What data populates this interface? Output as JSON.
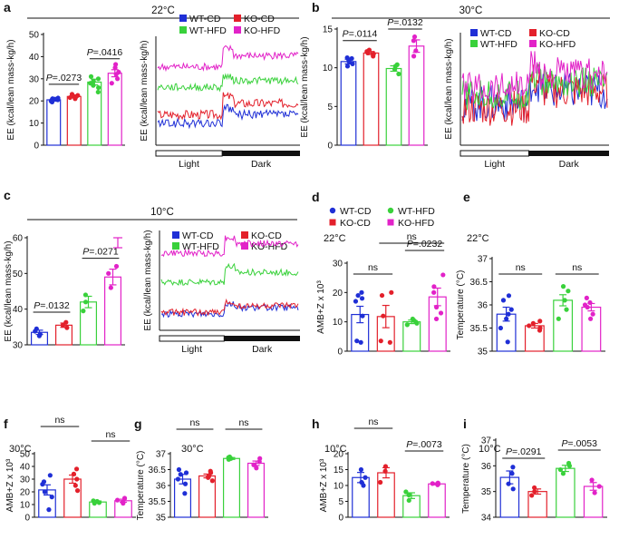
{
  "colors": {
    "WT-CD": "#1f2fd6",
    "KO-CD": "#e3202b",
    "WT-HFD": "#39d13b",
    "KO-HFD": "#e222c8"
  },
  "panels": [
    {
      "letter": "a",
      "title": "22°C",
      "legend": [
        "WT-CD",
        "KO-CD",
        "WT-HFD",
        "KO-HFD"
      ],
      "legend_cols": 2
    },
    {
      "letter": "b",
      "title": "30°C",
      "legend": [
        "WT-CD",
        "KO-CD",
        "WT-HFD",
        "KO-HFD"
      ],
      "legend_cols": 2
    },
    {
      "letter": "c",
      "title": "10°C",
      "legend": [
        "WT-CD",
        "KO-CD",
        "WT-HFD",
        "KO-HFD"
      ],
      "legend_cols": 2
    },
    {
      "letter": "d",
      "legend": [
        "WT-CD",
        "KO-CD",
        "WT-HFD",
        "KO-HFD"
      ],
      "legend_cols": 2
    },
    {
      "letter": "e"
    },
    {
      "letter": "f"
    },
    {
      "letter": "g"
    },
    {
      "letter": "h"
    },
    {
      "letter": "i"
    }
  ],
  "chart_data": [
    {
      "id": "a-bar",
      "type": "bar",
      "ylabel": "EE (kcal/lean mass-kg/h)",
      "ylim": [
        0,
        50
      ],
      "yticks": [
        "0",
        "10",
        "20",
        "30",
        "40",
        "50"
      ],
      "series": [
        {
          "name": "WT-CD",
          "mean": 20.5,
          "sem": 0.6,
          "points": [
            19.5,
            20,
            20.5,
            21,
            20.8,
            19.8,
            21.3
          ]
        },
        {
          "name": "KO-CD",
          "mean": 22,
          "sem": 0.6,
          "points": [
            21,
            21.5,
            22,
            22.5,
            23,
            21.8
          ]
        },
        {
          "name": "WT-HFD",
          "mean": 28.5,
          "sem": 1.3,
          "points": [
            24,
            26,
            28,
            29,
            30,
            31,
            27
          ]
        },
        {
          "name": "KO-HFD",
          "mean": 32.5,
          "sem": 1.6,
          "points": [
            28,
            30,
            32,
            33,
            35,
            36.5
          ]
        }
      ],
      "annotations": [
        {
          "text": "P=.0273",
          "from": 0,
          "to": 1
        },
        {
          "text": "P=.0416",
          "from": 2,
          "to": 3
        }
      ]
    },
    {
      "id": "a-line",
      "type": "line",
      "ylabel": "EE (kcal/lean mass-kg/h)",
      "xlabels": [
        "Light",
        "Dark"
      ],
      "series": [
        {
          "name": "WT-CD",
          "base": 21,
          "darkshift": 2,
          "noise": 1
        },
        {
          "name": "KO-CD",
          "base": 23,
          "darkshift": 2.5,
          "noise": 1
        },
        {
          "name": "WT-HFD",
          "base": 29,
          "darkshift": 1.5,
          "noise": 0.8
        },
        {
          "name": "KO-HFD",
          "base": 33.5,
          "darkshift": 2.5,
          "noise": 0.8
        }
      ]
    },
    {
      "id": "b-bar",
      "type": "bar",
      "ylabel": "EE (kcal/lean mass-kg/h)",
      "ylim": [
        0,
        15
      ],
      "yticks": [
        "0",
        "5",
        "10",
        "15"
      ],
      "series": [
        {
          "name": "WT-CD",
          "mean": 10.8,
          "sem": 0.3,
          "points": [
            10.2,
            10.5,
            11,
            11.2,
            10.8,
            11.3
          ]
        },
        {
          "name": "KO-CD",
          "mean": 11.9,
          "sem": 0.2,
          "points": [
            11.5,
            11.8,
            12.1,
            12.3,
            11.9
          ]
        },
        {
          "name": "WT-HFD",
          "mean": 9.9,
          "sem": 0.35,
          "points": [
            9.2,
            9.8,
            10.2,
            10.4
          ]
        },
        {
          "name": "KO-HFD",
          "mean": 12.8,
          "sem": 0.8,
          "points": [
            11.5,
            12.2,
            13.5,
            14
          ]
        }
      ],
      "annotations": [
        {
          "text": "P=.0114",
          "from": 0,
          "to": 1
        },
        {
          "text": "P=.0132",
          "from": 2,
          "to": 3
        }
      ]
    },
    {
      "id": "b-line",
      "type": "line",
      "ylabel": "EE (kcal/lean mass-kg/h)",
      "xlabels": [
        "Light",
        "Dark"
      ],
      "series": [
        {
          "name": "WT-CD",
          "base": 12.5,
          "darkshift": 1.5,
          "noise": 2.2
        },
        {
          "name": "KO-CD",
          "base": 12,
          "darkshift": 2,
          "noise": 2.2
        },
        {
          "name": "WT-HFD",
          "base": 13.5,
          "darkshift": 1.5,
          "noise": 1.8
        },
        {
          "name": "KO-HFD",
          "base": 14.5,
          "darkshift": 1.5,
          "noise": 2
        }
      ]
    },
    {
      "id": "c-bar",
      "type": "bar",
      "ylabel": "EE (kcal/lean mass-kg/h)",
      "ylim": [
        30,
        60
      ],
      "yticks": [
        "30",
        "40",
        "50",
        "60"
      ],
      "series": [
        {
          "name": "WT-CD",
          "mean": 33.5,
          "sem": 0.6,
          "points": [
            32.5,
            33,
            33.8,
            34.5
          ]
        },
        {
          "name": "KO-CD",
          "mean": 35.5,
          "sem": 0.6,
          "points": [
            34.8,
            35.5,
            36.3
          ]
        },
        {
          "name": "WT-HFD",
          "mean": 42,
          "sem": 1.6,
          "points": [
            39.5,
            42,
            44
          ]
        },
        {
          "name": "KO-HFD",
          "mean": 49,
          "sem": 2.2,
          "points": [
            46,
            50,
            52
          ]
        }
      ],
      "annotations": [
        {
          "text": "P=.0132",
          "from": 0,
          "to": 1
        },
        {
          "text": "P=.0271",
          "from": 2,
          "to": 3
        }
      ]
    },
    {
      "id": "c-line",
      "type": "line",
      "ylabel": "EE (kcal/lean mass-kg/h)",
      "xlabels": [
        "Light",
        "Dark"
      ],
      "series": [
        {
          "name": "WT-CD",
          "base": 38,
          "darkshift": 2,
          "noise": 1
        },
        {
          "name": "KO-CD",
          "base": 38.5,
          "darkshift": 2,
          "noise": 1
        },
        {
          "name": "WT-HFD",
          "base": 48,
          "darkshift": 3,
          "noise": 1
        },
        {
          "name": "KO-HFD",
          "base": 57,
          "darkshift": 3,
          "noise": 1
        }
      ]
    },
    {
      "id": "d-bar",
      "type": "bar",
      "cond": "22°C",
      "ylabel": "AMB+Z x 10³",
      "ylim": [
        0,
        30
      ],
      "yticks": [
        "0",
        "10",
        "20",
        "30"
      ],
      "series": [
        {
          "name": "WT-CD",
          "mean": 12.5,
          "sem": 2.8,
          "points": [
            3,
            3.5,
            12,
            18,
            19,
            20,
            17
          ]
        },
        {
          "name": "KO-CD",
          "mean": 11.8,
          "sem": 3.8,
          "points": [
            3,
            3.5,
            12,
            19,
            20
          ]
        },
        {
          "name": "WT-HFD",
          "mean": 10,
          "sem": 0.6,
          "points": [
            9,
            9.5,
            10,
            10.5,
            11
          ]
        },
        {
          "name": "KO-HFD",
          "mean": 18.5,
          "sem": 3,
          "points": [
            11,
            13,
            15,
            20,
            22,
            26
          ]
        }
      ],
      "annotations": [
        {
          "text": "ns",
          "from": 0,
          "to": 1
        },
        {
          "text": "P=.0232",
          "from": 2,
          "to": 3
        },
        {
          "text": "ns",
          "from": 1,
          "to": 3
        }
      ]
    },
    {
      "id": "e-bar",
      "type": "bar",
      "cond": "22°C",
      "ylabel": "Temperature (°C)",
      "ylim": [
        35,
        37
      ],
      "yticks": [
        "35",
        "35.5",
        "36",
        "36.5",
        "37"
      ],
      "series": [
        {
          "name": "WT-CD",
          "mean": 35.8,
          "sem": 0.15,
          "points": [
            35.2,
            35.5,
            35.7,
            35.9,
            36.1,
            36.2,
            35.8
          ]
        },
        {
          "name": "KO-CD",
          "mean": 35.55,
          "sem": 0.05,
          "points": [
            35.45,
            35.5,
            35.55,
            35.6,
            35.65
          ]
        },
        {
          "name": "WT-HFD",
          "mean": 36.1,
          "sem": 0.12,
          "points": [
            35.7,
            35.9,
            36.1,
            36.3,
            36.4
          ]
        },
        {
          "name": "KO-HFD",
          "mean": 35.95,
          "sem": 0.08,
          "points": [
            35.7,
            35.8,
            35.95,
            36.05,
            36.15,
            36
          ]
        }
      ],
      "annotations": [
        {
          "text": "ns",
          "from": 0,
          "to": 1
        },
        {
          "text": "ns",
          "from": 2,
          "to": 3
        }
      ]
    },
    {
      "id": "f-bar",
      "type": "bar",
      "cond": "30°C",
      "ylabel": "AMB+Z x 10³",
      "ylim": [
        0,
        50
      ],
      "yticks": [
        "0",
        "10",
        "20",
        "30",
        "40",
        "50"
      ],
      "series": [
        {
          "name": "WT-CD",
          "mean": 21.5,
          "sem": 4,
          "points": [
            6,
            16,
            20,
            26,
            28,
            33
          ]
        },
        {
          "name": "KO-CD",
          "mean": 30,
          "sem": 3.2,
          "points": [
            21,
            25,
            30,
            34,
            38
          ]
        },
        {
          "name": "WT-HFD",
          "mean": 12,
          "sem": 0.8,
          "points": [
            11,
            11.5,
            12.5,
            13
          ]
        },
        {
          "name": "KO-HFD",
          "mean": 13,
          "sem": 1.2,
          "points": [
            11,
            12,
            13.5,
            15
          ]
        }
      ],
      "annotations": [
        {
          "text": "ns",
          "from": 0,
          "to": 1
        },
        {
          "text": "ns",
          "from": 2,
          "to": 3
        }
      ]
    },
    {
      "id": "g-bar",
      "type": "bar",
      "cond": "30°C",
      "ylabel": "Temperature (°C)",
      "ylim": [
        35,
        37
      ],
      "yticks": [
        "35",
        "35.5",
        "36",
        "36.5",
        "37"
      ],
      "series": [
        {
          "name": "WT-CD",
          "mean": 36.2,
          "sem": 0.15,
          "points": [
            35.75,
            36.05,
            36.2,
            36.35,
            36.5,
            36.4
          ]
        },
        {
          "name": "KO-CD",
          "mean": 36.3,
          "sem": 0.06,
          "points": [
            36.15,
            36.25,
            36.3,
            36.4,
            36.45
          ]
        },
        {
          "name": "WT-HFD",
          "mean": 36.85,
          "sem": 0.03,
          "points": [
            36.82,
            36.85,
            36.88,
            36.9
          ]
        },
        {
          "name": "KO-HFD",
          "mean": 36.7,
          "sem": 0.07,
          "points": [
            36.55,
            36.65,
            36.75,
            36.85
          ]
        }
      ],
      "annotations": [
        {
          "text": "ns",
          "from": 0,
          "to": 1
        },
        {
          "text": "ns",
          "from": 2,
          "to": 3
        }
      ]
    },
    {
      "id": "h-bar",
      "type": "bar",
      "cond": "10°C",
      "ylabel": "AMB+Z x 10³",
      "ylim": [
        0,
        20
      ],
      "yticks": [
        "0",
        "5",
        "10",
        "15",
        "20"
      ],
      "series": [
        {
          "name": "WT-CD",
          "mean": 12.5,
          "sem": 1.6,
          "points": [
            10,
            11,
            12.5,
            15
          ]
        },
        {
          "name": "KO-CD",
          "mean": 14,
          "sem": 1.6,
          "points": [
            11,
            14.5,
            16
          ]
        },
        {
          "name": "WT-HFD",
          "mean": 6.8,
          "sem": 0.9,
          "points": [
            5.3,
            7,
            8
          ]
        },
        {
          "name": "KO-HFD",
          "mean": 10.5,
          "sem": 0.3,
          "points": [
            10.2,
            10.6,
            10.8
          ]
        }
      ],
      "annotations": [
        {
          "text": "ns",
          "from": 0,
          "to": 1
        },
        {
          "text": "P=.0073",
          "from": 2,
          "to": 3
        }
      ]
    },
    {
      "id": "i-bar",
      "type": "bar",
      "cond": "10°C",
      "ylabel": "Temperature (°C)",
      "ylim": [
        34,
        37
      ],
      "yticks": [
        "34",
        "35",
        "36",
        "37"
      ],
      "series": [
        {
          "name": "WT-CD",
          "mean": 35.55,
          "sem": 0.25,
          "points": [
            35.1,
            35.3,
            35.7,
            35.95
          ]
        },
        {
          "name": "KO-CD",
          "mean": 35,
          "sem": 0.1,
          "points": [
            34.85,
            35,
            35.15
          ]
        },
        {
          "name": "WT-HFD",
          "mean": 35.9,
          "sem": 0.12,
          "points": [
            35.7,
            35.85,
            36,
            36.1
          ]
        },
        {
          "name": "KO-HFD",
          "mean": 35.2,
          "sem": 0.15,
          "points": [
            34.95,
            35.2,
            35.45
          ]
        }
      ],
      "annotations": [
        {
          "text": "P=.0291",
          "from": 0,
          "to": 1
        },
        {
          "text": "P=.0053",
          "from": 2,
          "to": 3
        }
      ]
    }
  ]
}
